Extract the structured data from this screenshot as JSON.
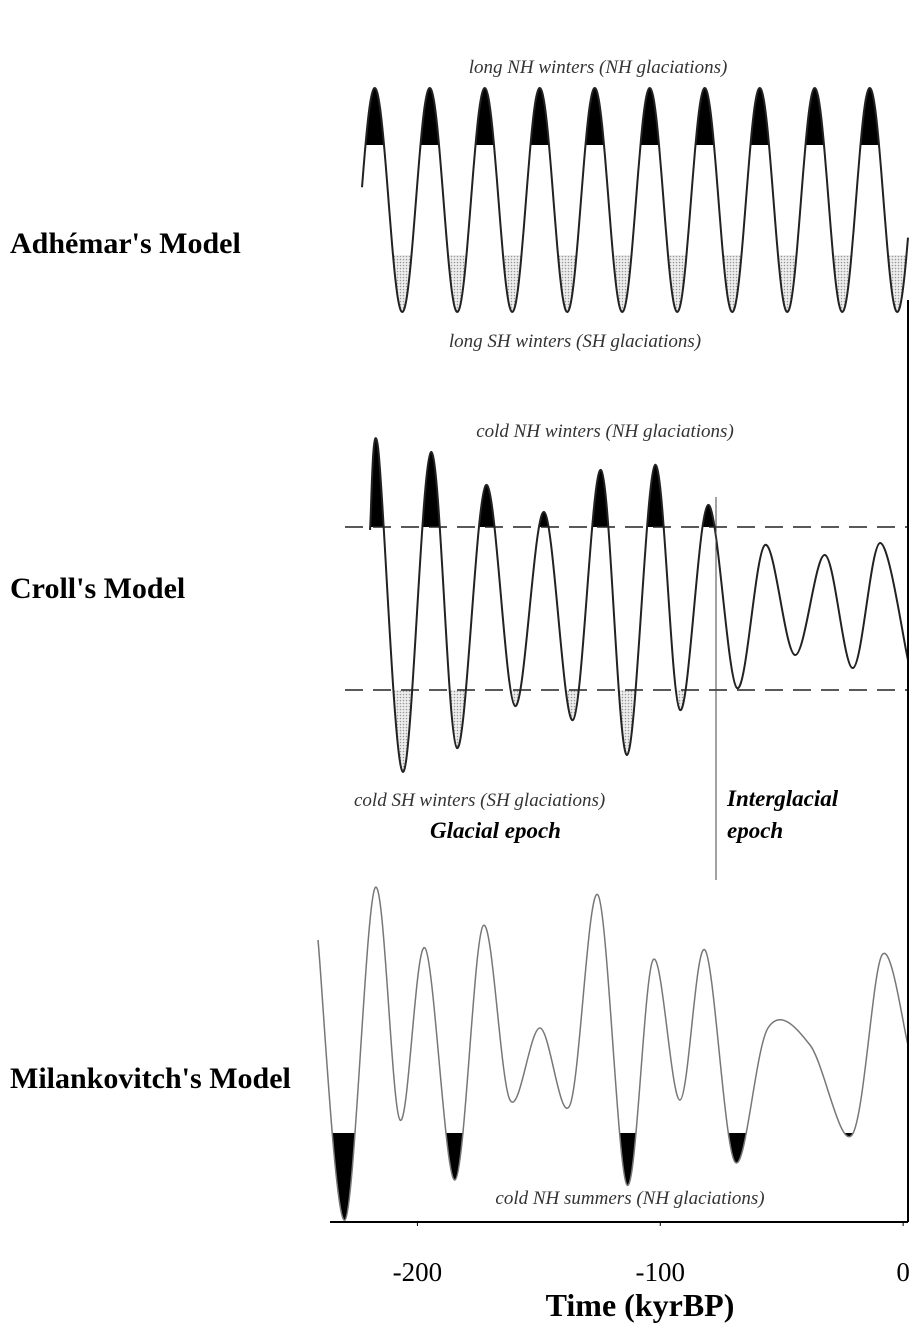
{
  "panels": [
    {
      "name": "Adhémar's Model",
      "top_label": "long NH winters (NH glaciations)",
      "bottom_label": "long SH winters (SH glaciations)"
    },
    {
      "name": "Croll's Model",
      "top_label": "cold NH winters (NH glaciations)",
      "bottom_label": "cold SH winters (SH glaciations)",
      "glacial": "Glacial epoch",
      "interglacial": "Interglacial epoch"
    },
    {
      "name": "Milankovitch's Model",
      "bottom_label": "cold NH summers (NH glaciations)"
    }
  ],
  "axis": {
    "label": "Time (kyrBP)",
    "xticks": [
      -200,
      -100,
      0
    ],
    "xlim": [
      -236,
      2
    ]
  }
}
